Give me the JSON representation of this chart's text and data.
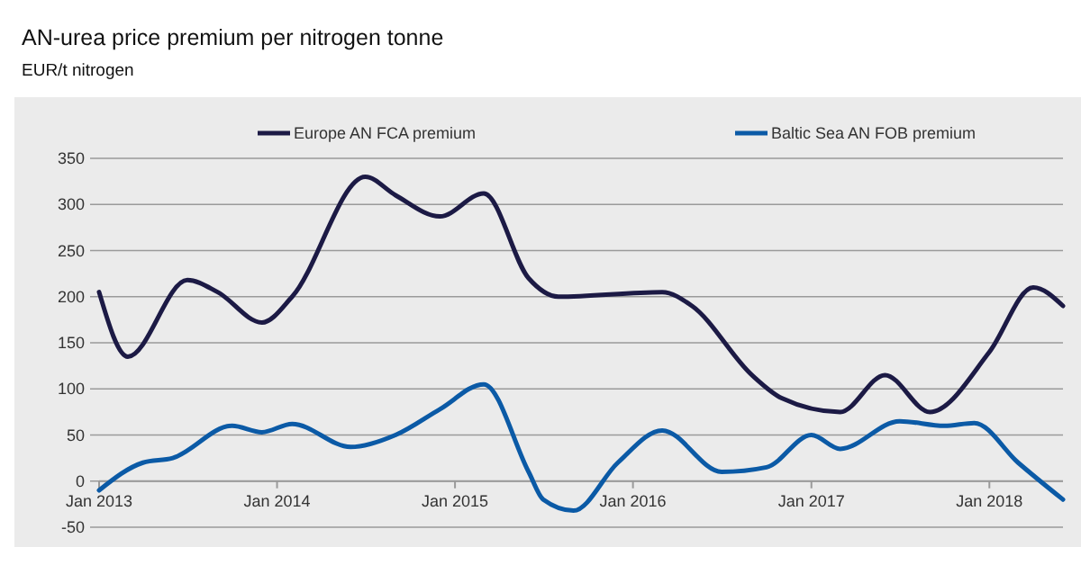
{
  "chart_data": {
    "type": "line",
    "title": "AN-urea price premium per nitrogen tonne",
    "ylabel": "EUR/t nitrogen",
    "xlim": [
      "2013-01",
      "2018-06"
    ],
    "xticks": [
      {
        "value": "2013-01",
        "label": "Jan 2013"
      },
      {
        "value": "2014-01",
        "label": "Jan 2014"
      },
      {
        "value": "2015-01",
        "label": "Jan 2015"
      },
      {
        "value": "2016-01",
        "label": "Jan 2016"
      },
      {
        "value": "2017-01",
        "label": "Jan 2017"
      },
      {
        "value": "2018-01",
        "label": "Jan 2018"
      }
    ],
    "ylim": [
      -50,
      350
    ],
    "yticks": [
      -50,
      0,
      50,
      100,
      150,
      200,
      250,
      300,
      350
    ],
    "grid": "y",
    "legend": "top",
    "line_style": "solid",
    "marker": "none",
    "series": [
      {
        "name": "Europe AN FCA premium",
        "color": "#1c1a45",
        "x": [
          "2013-01",
          "2013-03",
          "2013-07",
          "2013-09",
          "2013-12",
          "2014-02",
          "2014-07",
          "2014-09",
          "2014-12",
          "2015-03",
          "2015-06",
          "2015-08",
          "2016-03",
          "2016-05",
          "2016-09",
          "2016-11",
          "2017-03",
          "2017-06",
          "2017-09",
          "2018-01",
          "2018-04",
          "2018-06"
        ],
        "values": [
          205,
          135,
          218,
          205,
          172,
          200,
          330,
          310,
          287,
          312,
          220,
          200,
          205,
          190,
          115,
          90,
          75,
          115,
          75,
          140,
          210,
          190
        ]
      },
      {
        "name": "Baltic Sea AN FOB premium",
        "color": "#0b5aa6",
        "x": [
          "2013-01",
          "2013-04",
          "2013-06",
          "2013-10",
          "2013-12",
          "2014-02",
          "2014-06",
          "2014-09",
          "2014-12",
          "2015-03",
          "2015-06",
          "2015-07",
          "2015-09",
          "2015-12",
          "2016-03",
          "2016-07",
          "2016-10",
          "2017-01",
          "2017-03",
          "2017-07",
          "2017-10",
          "2017-12",
          "2018-03",
          "2018-06"
        ],
        "values": [
          -10,
          20,
          25,
          60,
          53,
          62,
          37,
          50,
          78,
          105,
          10,
          -20,
          -32,
          20,
          55,
          10,
          15,
          50,
          35,
          65,
          60,
          63,
          20,
          -20
        ]
      }
    ]
  }
}
